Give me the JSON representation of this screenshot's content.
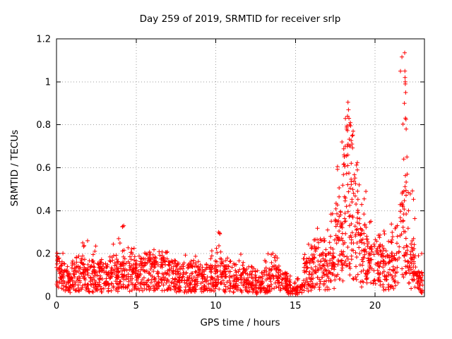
{
  "chart_data": {
    "type": "scatter",
    "title": "Day 259 of 2019, SRMTID for receiver srlp",
    "xlabel": "GPS time / hours",
    "ylabel": "SRMTID / TECUs",
    "xlim": [
      0,
      23.1
    ],
    "ylim": [
      0,
      1.2
    ],
    "xticks": {
      "values": [
        0,
        5,
        10,
        15,
        20
      ],
      "labels": [
        "0",
        "5",
        "10",
        "15",
        "20"
      ]
    },
    "yticks": {
      "values": [
        0,
        0.2,
        0.4,
        0.6,
        0.8,
        1.0,
        1.2
      ],
      "labels": [
        "0",
        "0.2",
        "0.4",
        "0.6",
        "0.8",
        "1",
        "1.2"
      ]
    },
    "grid": true,
    "legend": "none",
    "marker": "plus",
    "marker_color": "#ff0000",
    "series_name": "SRMTID",
    "density_bins": {
      "format": "[x_start_hours, x_end_hours, n_points, typical_TECUs, max_TECUs]",
      "bins": [
        [
          0.0,
          0.5,
          45,
          0.09,
          0.21
        ],
        [
          0.5,
          1.0,
          45,
          0.07,
          0.16
        ],
        [
          1.0,
          1.5,
          45,
          0.08,
          0.19
        ],
        [
          1.5,
          2.0,
          45,
          0.09,
          0.26
        ],
        [
          2.0,
          2.5,
          45,
          0.08,
          0.24
        ],
        [
          2.5,
          3.0,
          45,
          0.08,
          0.18
        ],
        [
          3.0,
          3.5,
          45,
          0.08,
          0.2
        ],
        [
          3.5,
          4.0,
          45,
          0.09,
          0.27
        ],
        [
          4.0,
          4.5,
          45,
          0.09,
          0.33
        ],
        [
          4.5,
          5.0,
          45,
          0.09,
          0.23
        ],
        [
          5.0,
          5.5,
          45,
          0.1,
          0.22
        ],
        [
          5.5,
          6.0,
          45,
          0.1,
          0.21
        ],
        [
          6.0,
          6.5,
          45,
          0.11,
          0.23
        ],
        [
          6.5,
          7.0,
          45,
          0.1,
          0.21
        ],
        [
          7.0,
          7.5,
          45,
          0.09,
          0.18
        ],
        [
          7.5,
          8.0,
          45,
          0.08,
          0.17
        ],
        [
          8.0,
          8.5,
          45,
          0.08,
          0.2
        ],
        [
          8.5,
          9.0,
          45,
          0.08,
          0.19
        ],
        [
          9.0,
          9.5,
          40,
          0.07,
          0.16
        ],
        [
          9.5,
          10.0,
          40,
          0.08,
          0.22
        ],
        [
          10.0,
          10.5,
          45,
          0.09,
          0.3
        ],
        [
          10.5,
          11.0,
          40,
          0.08,
          0.18
        ],
        [
          11.0,
          11.5,
          40,
          0.07,
          0.17
        ],
        [
          11.5,
          12.0,
          40,
          0.07,
          0.2
        ],
        [
          12.0,
          12.5,
          40,
          0.06,
          0.14
        ],
        [
          12.5,
          13.0,
          40,
          0.05,
          0.13
        ],
        [
          13.0,
          13.5,
          40,
          0.07,
          0.22
        ],
        [
          13.5,
          14.0,
          40,
          0.08,
          0.24
        ],
        [
          14.0,
          14.5,
          40,
          0.06,
          0.13
        ],
        [
          14.5,
          15.0,
          35,
          0.04,
          0.1
        ],
        [
          15.0,
          15.5,
          30,
          0.03,
          0.09
        ],
        [
          15.5,
          16.0,
          45,
          0.1,
          0.3
        ],
        [
          16.0,
          16.5,
          50,
          0.13,
          0.33
        ],
        [
          16.5,
          17.0,
          50,
          0.11,
          0.28
        ],
        [
          17.0,
          17.5,
          50,
          0.13,
          0.4
        ],
        [
          17.5,
          18.0,
          55,
          0.22,
          0.72
        ],
        [
          18.0,
          18.5,
          60,
          0.4,
          0.91
        ],
        [
          18.5,
          19.0,
          55,
          0.3,
          0.77
        ],
        [
          19.0,
          19.5,
          50,
          0.18,
          0.52
        ],
        [
          19.5,
          20.0,
          45,
          0.14,
          0.42
        ],
        [
          20.0,
          20.5,
          45,
          0.14,
          0.36
        ],
        [
          20.5,
          21.0,
          45,
          0.12,
          0.32
        ],
        [
          21.0,
          21.5,
          45,
          0.14,
          0.36
        ],
        [
          21.5,
          22.0,
          55,
          0.28,
          1.13
        ],
        [
          22.0,
          22.5,
          50,
          0.13,
          0.58
        ],
        [
          22.5,
          23.0,
          45,
          0.07,
          0.25
        ]
      ]
    },
    "peak_points": [
      [
        1.95,
        0.26
      ],
      [
        3.9,
        0.27
      ],
      [
        4.22,
        0.33
      ],
      [
        10.18,
        0.3
      ],
      [
        17.92,
        0.72
      ],
      [
        18.05,
        0.66
      ],
      [
        18.22,
        0.78
      ],
      [
        18.27,
        0.84
      ],
      [
        18.3,
        0.905
      ],
      [
        18.33,
        0.87
      ],
      [
        18.36,
        0.83
      ],
      [
        18.4,
        0.8
      ],
      [
        18.55,
        0.71
      ],
      [
        18.62,
        0.77
      ],
      [
        19.0,
        0.52
      ],
      [
        21.8,
        0.64
      ],
      [
        21.84,
        0.9
      ],
      [
        21.86,
        1.135
      ],
      [
        21.87,
        1.05
      ],
      [
        21.88,
        1.02
      ],
      [
        21.9,
        0.99
      ],
      [
        21.92,
        0.95
      ],
      [
        21.95,
        0.78
      ],
      [
        22.0,
        0.65
      ],
      [
        22.02,
        0.57
      ],
      [
        22.1,
        0.4
      ]
    ],
    "background_color": "#ffffff",
    "text_color": "#000000"
  }
}
